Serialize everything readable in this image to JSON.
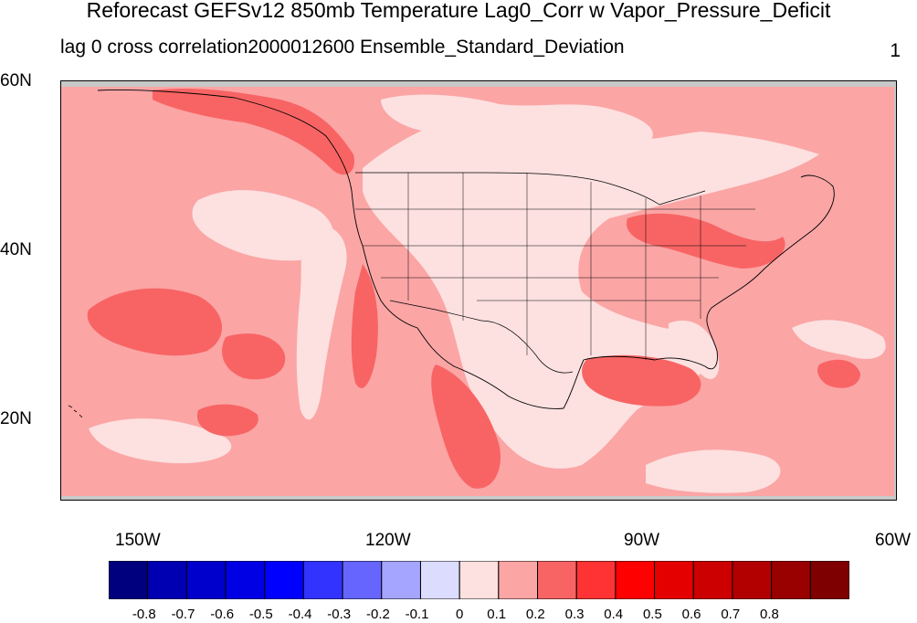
{
  "title": "Reforecast GEFSv12 850mb Temperature Lag0_Corr w Vapor_Pressure_Deficit",
  "subtitle_left": "lag 0 cross correlation2000012600 Ensemble_Standard_Deviation",
  "subtitle_right": "1",
  "map": {
    "lon_range": [
      -160,
      -60
    ],
    "lat_range": [
      10,
      60
    ],
    "lat_ticks": [
      "60N",
      "40N",
      "20N"
    ],
    "lon_ticks": [
      "150W",
      "120W",
      "90W",
      "60W"
    ],
    "background_color": "#fba5a5",
    "contour_colors": {
      "0_to_0.1": "#fde0e0",
      "0.1_to_0.2": "#fba5a5",
      "0.2_to_0.3": "#f86464"
    },
    "missing_color": "#c8c8c8"
  },
  "colorbar": {
    "colors": [
      "#00007f",
      "#0000b2",
      "#0000cc",
      "#0000e5",
      "#0000ff",
      "#3333ff",
      "#6666ff",
      "#a5a5ff",
      "#dcdcff",
      "#fde0e0",
      "#fba5a5",
      "#f86464",
      "#ff3333",
      "#ff0000",
      "#e50000",
      "#cc0000",
      "#b20000",
      "#990000",
      "#7f0000"
    ],
    "labels": [
      "-0.8",
      "-0.7",
      "-0.6",
      "-0.5",
      "-0.4",
      "-0.3",
      "-0.2",
      "-0.1",
      "0",
      "0.1",
      "0.2",
      "0.3",
      "0.4",
      "0.5",
      "0.6",
      "0.7",
      "0.8"
    ]
  }
}
